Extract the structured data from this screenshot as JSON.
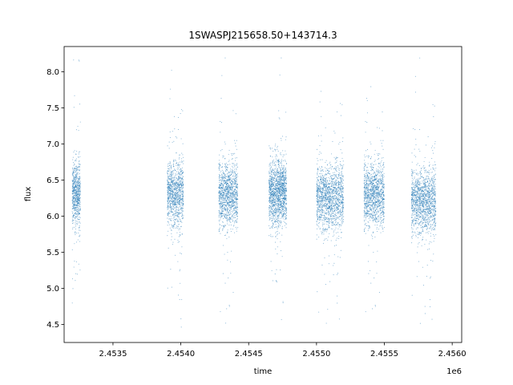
{
  "chart_data": {
    "type": "scatter",
    "title": "1SWASPJ215658.50+143714.3",
    "xlabel": "time",
    "ylabel": "flux",
    "x_offset_label": "1e6",
    "xlim": [
      2453140,
      2456070
    ],
    "ylim": [
      4.25,
      8.35
    ],
    "x_ticks": [
      2453500,
      2454000,
      2454500,
      2455000,
      2455500,
      2456000
    ],
    "x_tick_labels": [
      "2.4535",
      "2.4540",
      "2.4545",
      "2.4550",
      "2.4555",
      "2.4560"
    ],
    "y_ticks": [
      4.5,
      5.0,
      5.5,
      6.0,
      6.5,
      7.0,
      7.5,
      8.0
    ],
    "y_tick_labels": [
      "4.5",
      "5.0",
      "5.5",
      "6.0",
      "6.5",
      "7.0",
      "7.5",
      "8.0"
    ],
    "grid": false,
    "legend": "none",
    "marker_color": "#1f77b4",
    "observing_seasons": [
      {
        "x_start": 2453200,
        "x_end": 2453260,
        "median_flux": 6.3,
        "flux_min": 4.75,
        "flux_max": 8.2
      },
      {
        "x_start": 2453900,
        "x_end": 2454020,
        "median_flux": 6.3,
        "flux_min": 4.45,
        "flux_max": 8.05
      },
      {
        "x_start": 2454280,
        "x_end": 2454420,
        "median_flux": 6.3,
        "flux_min": 4.45,
        "flux_max": 8.2
      },
      {
        "x_start": 2454650,
        "x_end": 2454720,
        "median_flux": 6.3,
        "flux_min": 5.0,
        "flux_max": 7.0
      },
      {
        "x_start": 2454720,
        "x_end": 2454780,
        "median_flux": 6.35,
        "flux_min": 4.5,
        "flux_max": 8.2
      },
      {
        "x_start": 2455000,
        "x_end": 2455200,
        "median_flux": 6.25,
        "flux_min": 4.45,
        "flux_max": 8.2
      },
      {
        "x_start": 2455350,
        "x_end": 2455500,
        "median_flux": 6.3,
        "flux_min": 4.45,
        "flux_max": 7.8
      },
      {
        "x_start": 2455700,
        "x_end": 2455880,
        "median_flux": 6.2,
        "flux_min": 4.45,
        "flux_max": 8.2
      }
    ]
  }
}
